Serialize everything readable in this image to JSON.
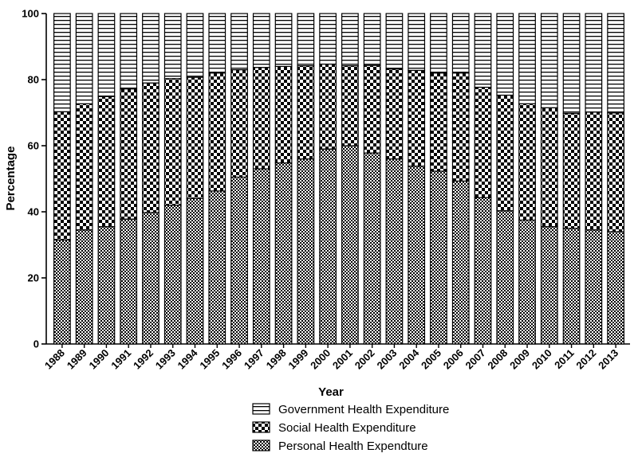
{
  "chart_data": {
    "type": "bar",
    "stacked": true,
    "percent_stacked": true,
    "title": "",
    "xlabel": "Year",
    "ylabel": "Percentage",
    "ylim": [
      0,
      100
    ],
    "yticks": [
      0,
      20,
      40,
      60,
      80,
      100
    ],
    "grid": false,
    "legend_placement": "bottom",
    "categories": [
      "1988",
      "1989",
      "1990",
      "1991",
      "1992",
      "1993",
      "1994",
      "1995",
      "1996",
      "1997",
      "1998",
      "1999",
      "2000",
      "2001",
      "2002",
      "2003",
      "2004",
      "2005",
      "2006",
      "2007",
      "2008",
      "2009",
      "2010",
      "2011",
      "2012",
      "2013"
    ],
    "series": [
      {
        "name": "Personal Health Expendture",
        "pattern": "fine-checker",
        "values": [
          31.5,
          34.5,
          35.5,
          37.8,
          39.8,
          42.0,
          44.0,
          46.3,
          50.5,
          53.0,
          54.8,
          56.0,
          59.0,
          60.0,
          57.8,
          56.0,
          53.8,
          52.3,
          49.3,
          44.3,
          40.3,
          37.5,
          35.5,
          35.0,
          34.5,
          34.0
        ]
      },
      {
        "name": "Social Health Expenditure",
        "pattern": "coarse-checker",
        "values": [
          38.8,
          38.2,
          39.4,
          39.4,
          39.2,
          38.3,
          36.7,
          35.7,
          32.5,
          30.7,
          29.2,
          28.2,
          25.7,
          24.2,
          26.5,
          27.2,
          29.0,
          29.7,
          32.7,
          33.4,
          35.0,
          35.2,
          36.0,
          34.8,
          35.7,
          35.9
        ]
      },
      {
        "name": "Government Health Expenditure",
        "pattern": "horizontal-lines",
        "values": [
          29.7,
          27.3,
          25.1,
          22.8,
          21.0,
          19.7,
          19.3,
          18.0,
          17.0,
          16.3,
          16.0,
          15.8,
          15.3,
          15.8,
          15.7,
          16.8,
          17.2,
          18.0,
          18.0,
          22.3,
          24.7,
          27.3,
          28.5,
          30.2,
          29.8,
          30.1
        ]
      }
    ],
    "legend_order": [
      "Government Health Expenditure",
      "Social Health Expenditure",
      "Personal Health Expendture"
    ]
  }
}
